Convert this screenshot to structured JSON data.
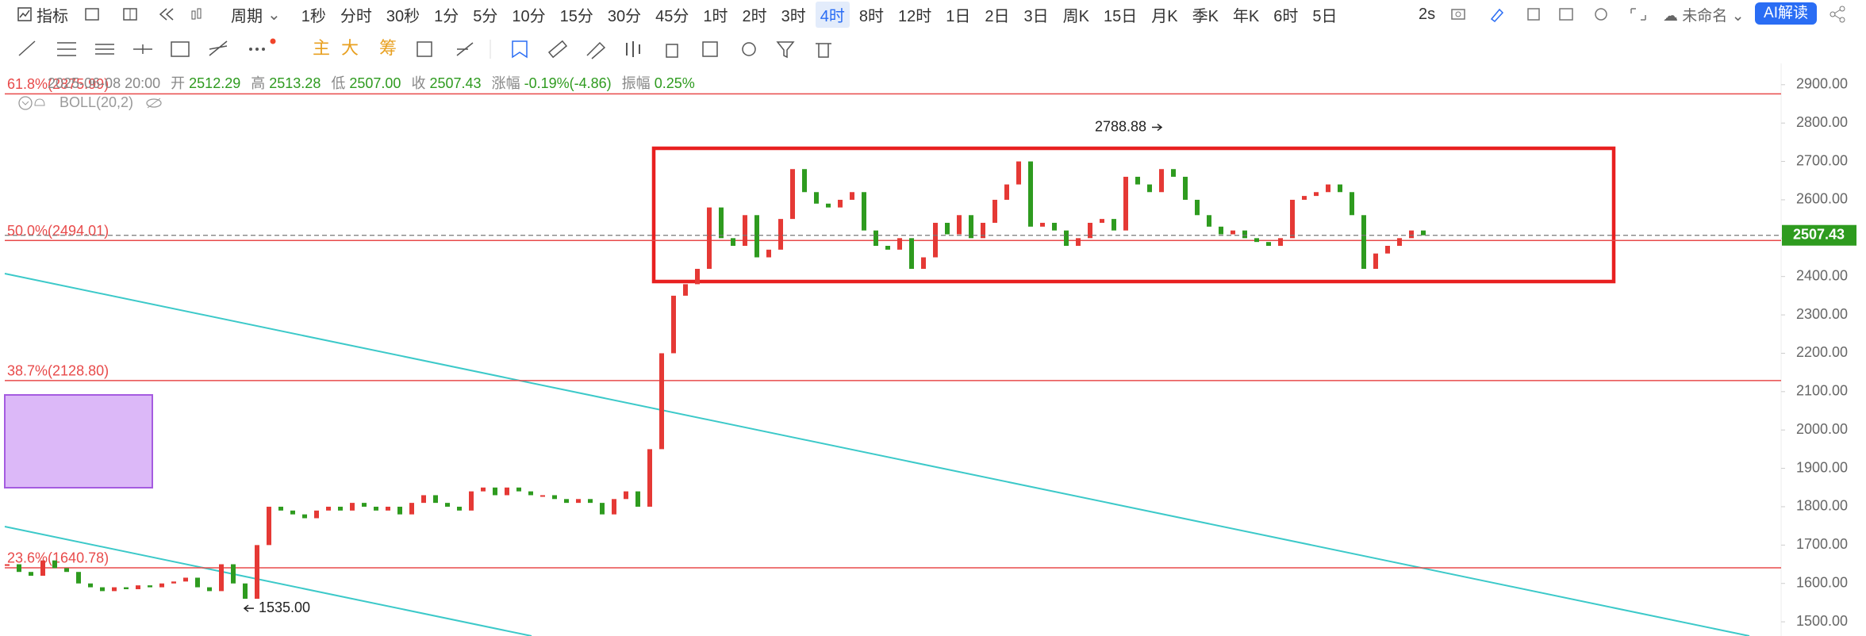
{
  "toolbar": {
    "indicator": "指标",
    "period": "周期",
    "intervals": [
      "1秒",
      "分时",
      "30秒",
      "1分",
      "5分",
      "10分",
      "15分",
      "30分",
      "45分",
      "1时",
      "2时",
      "3时",
      "4时",
      "8时",
      "12时",
      "1日",
      "2日",
      "3日",
      "周K",
      "15日",
      "月K",
      "季K",
      "年K",
      "6时",
      "5日"
    ],
    "selected_index": 12,
    "refresh": "2s",
    "layout_name": "未命名",
    "ai_button": "AI解读"
  },
  "drawing_tools": {
    "main": "主",
    "big": "大",
    "chips": "筹"
  },
  "info": {
    "datetime": "2025-06-08 20:00",
    "open_label": "开",
    "open": "2512.29",
    "high_label": "高",
    "high": "2513.28",
    "low_label": "低",
    "low": "2507.00",
    "close_label": "收",
    "close": "2507.43",
    "change_label": "涨幅",
    "change": "-0.19%(-4.86)",
    "amplitude_label": "振幅",
    "amplitude": "0.25%",
    "indicator": "BOLL(20,2)"
  },
  "chart": {
    "type": "candlestick",
    "closes": [
      1650,
      1630,
      1620,
      1660,
      1640,
      1630,
      1600,
      1590,
      1580,
      1590,
      1585,
      1595,
      1590,
      1600,
      1605,
      1615,
      1590,
      1580,
      1650,
      1600,
      1560,
      1700,
      1800,
      1790,
      1780,
      1770,
      1790,
      1800,
      1790,
      1810,
      1800,
      1790,
      1800,
      1780,
      1810,
      1830,
      1810,
      1800,
      1790,
      1840,
      1850,
      1830,
      1850,
      1840,
      1830,
      1830,
      1820,
      1810,
      1820,
      1810,
      1780,
      1820,
      1840,
      1800,
      1950,
      2200,
      2350,
      2380,
      2420,
      2580,
      2500,
      2480,
      2560,
      2450,
      2470,
      2550,
      2680,
      2620,
      2590,
      2580,
      2600,
      2620,
      2520,
      2480,
      2470,
      2500,
      2420,
      2450,
      2540,
      2510,
      2560,
      2500,
      2540,
      2600,
      2640,
      2700,
      2530,
      2540,
      2520,
      2480,
      2500,
      2540,
      2550,
      2520,
      2660,
      2640,
      2620,
      2680,
      2660,
      2600,
      2560,
      2530,
      2510,
      2520,
      2500,
      2490,
      2480,
      2500,
      2600,
      2610,
      2620,
      2640,
      2620,
      2560,
      2420,
      2460,
      2480,
      2500,
      2520,
      2507.43
    ],
    "ylim": [
      1463,
      2943
    ],
    "yticks": [
      {
        "value": 1500,
        "label": "1500.00"
      },
      {
        "value": 1600,
        "label": "1600.00"
      },
      {
        "value": 1700,
        "label": "1700.00"
      },
      {
        "value": 1800,
        "label": "1800.00"
      },
      {
        "value": 1900,
        "label": "1900.00"
      },
      {
        "value": 2000,
        "label": "2000.00"
      },
      {
        "value": 2100,
        "label": "2100.00"
      },
      {
        "value": 2200,
        "label": "2200.00"
      },
      {
        "value": 2300,
        "label": "2300.00"
      },
      {
        "value": 2400,
        "label": "2400.00"
      },
      {
        "value": 2500,
        "label": "2500.00"
      },
      {
        "value": 2600,
        "label": "2600.00"
      },
      {
        "value": 2700,
        "label": "2700.00"
      },
      {
        "value": 2800,
        "label": "2800.00"
      },
      {
        "value": 2900,
        "label": "2900.00"
      }
    ],
    "last_price": {
      "value": 2507.43,
      "label": "2507.43"
    },
    "fib_levels": [
      {
        "value": 2875.99,
        "label": "61.8%(2875.99)"
      },
      {
        "value": 2494.01,
        "label": "50.0%(2494.01)"
      },
      {
        "value": 2128.8,
        "label": "38.7%(2128.80)"
      },
      {
        "value": 1640.78,
        "label": "23.6%(1640.78)"
      }
    ],
    "high_marker": {
      "value": 2788.88,
      "label": "2788.88"
    },
    "low_marker": {
      "value": 1535,
      "label": "1535.00"
    },
    "colors": {
      "up": "#e53935",
      "down": "#2e9b1f",
      "fib": "#e84a4a",
      "last": "#2e9b1f"
    }
  }
}
